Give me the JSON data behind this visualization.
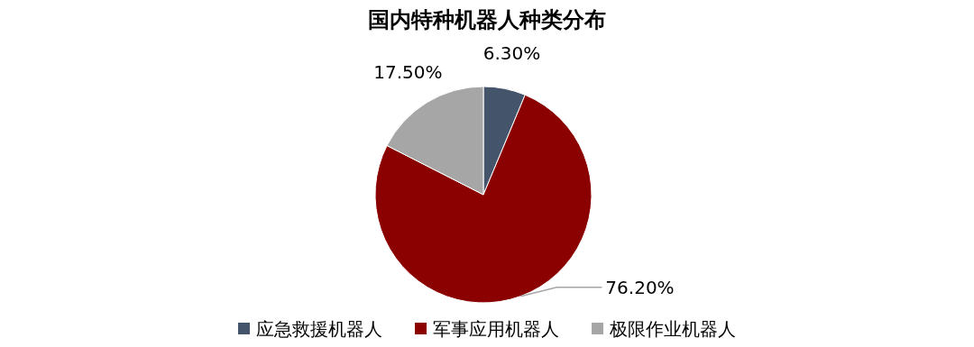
{
  "chart_data": {
    "type": "pie",
    "title": "国内特种机器人种类分布",
    "categories": [
      "应急救援机器人",
      "军事应用机器人",
      "极限作业机器人"
    ],
    "values": [
      6.3,
      76.2,
      17.5
    ],
    "colors": [
      "#44546a",
      "#8b0000",
      "#a6a6a6"
    ],
    "value_labels": [
      "6.30%",
      "76.20%",
      "17.50%"
    ],
    "legend": "bottom"
  }
}
